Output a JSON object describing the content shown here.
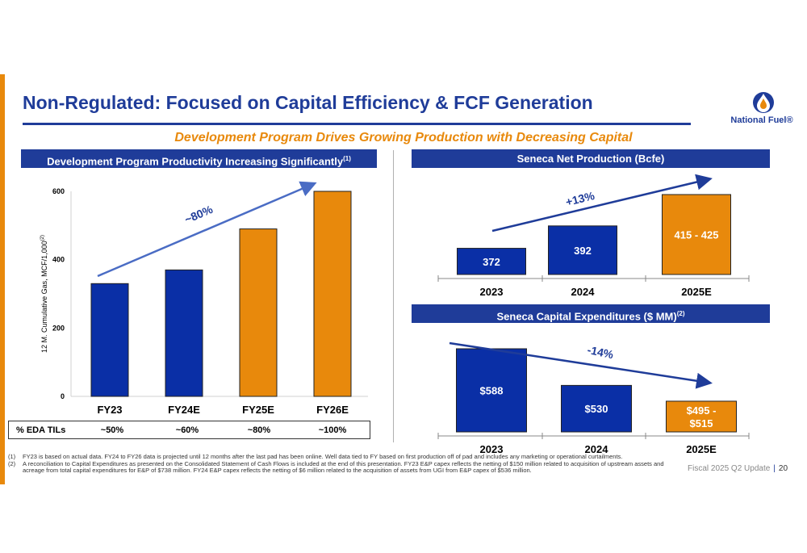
{
  "slide": {
    "title": "Non-Regulated: Focused on Capital Efficiency & FCF Generation",
    "subtitle": "Development Program Drives Growing Production with Decreasing Capital",
    "logo_text": "National Fuel®",
    "footer_text": "Fiscal 2025 Q2 Update",
    "footer_sep": "|",
    "page_number": "20",
    "colors": {
      "navy": "#1f3c99",
      "orange": "#e8890c",
      "arrow_blue": "#4a6cc4"
    }
  },
  "left_panel": {
    "header": "Development Program Productivity Increasing Significantly",
    "header_sup": "(1)",
    "eda_row": {
      "label": "% EDA TILs",
      "values": [
        "~50%",
        "~60%",
        "~80%",
        "~100%"
      ]
    }
  },
  "right_top_panel": {
    "header": "Seneca Net Production (Bcfe)"
  },
  "right_bottom_panel": {
    "header": "Seneca Capital Expenditures ($ MM)",
    "header_sup": "(2)"
  },
  "footnotes": [
    {
      "num": "(1)",
      "text": "FY23 is based on actual data. FY24 to FY26 data is projected until 12 months after the last pad has been online. Well data tied to FY based on first production off of pad and includes any marketing or operational curtailments."
    },
    {
      "num": "(2)",
      "text": "A reconciliation to Capital Expenditures as presented on the Consolidated Statement of Cash Flows is included at the end of this presentation. FY23 E&P capex reflects the netting of $150 million related to acquisition of upstream assets and acreage from total capital expenditures for E&P of $738 million. FY24 E&P capex reflects the netting of $6 million related to the acquisition of assets from UGI from E&P capex of $536 million."
    }
  ],
  "chart_data": [
    {
      "type": "bar",
      "categories": [
        "FY23",
        "FY24E",
        "FY25E",
        "FY26E"
      ],
      "values": [
        330,
        370,
        490,
        600
      ],
      "bar_colors": [
        "#0a2fa6",
        "#0a2fa6",
        "#e8890c",
        "#e8890c"
      ],
      "ylabel": "12 M. Cumulative Gas, MCF/1,000",
      "ylabel_sup": "(2)",
      "ylim": [
        0,
        600
      ],
      "yticks": [
        "0",
        "200",
        "400",
        "600"
      ],
      "annotation": "~80%",
      "grid": false
    },
    {
      "type": "bar",
      "categories": [
        "2023",
        "2024",
        "2025E"
      ],
      "values": [
        372,
        392,
        420
      ],
      "data_labels": [
        "372",
        "392",
        "415 - 425"
      ],
      "bar_colors": [
        "#0a2fa6",
        "#0a2fa6",
        "#e8890c"
      ],
      "annotation": "+13%",
      "grid": false
    },
    {
      "type": "bar",
      "categories": [
        "2023",
        "2024",
        "2025E"
      ],
      "values": [
        588,
        530,
        505
      ],
      "data_labels": [
        "$588",
        "$530",
        "$495 -\n$515"
      ],
      "bar_colors": [
        "#0a2fa6",
        "#0a2fa6",
        "#e8890c"
      ],
      "annotation": "-14%",
      "grid": false
    }
  ]
}
